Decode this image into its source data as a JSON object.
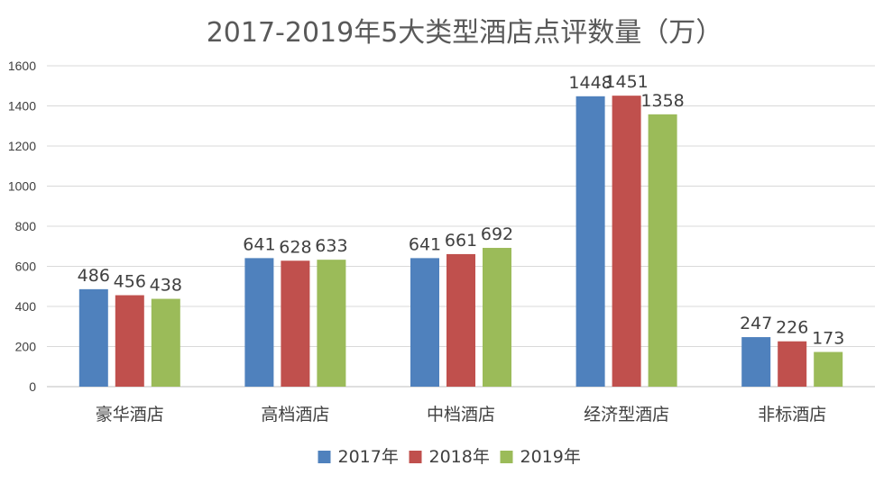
{
  "chart_data": {
    "type": "bar",
    "title": "2017-2019年5大类型酒店点评数量（万）",
    "categories": [
      "豪华酒店",
      "高档酒店",
      "中档酒店",
      "经济型酒店",
      "非标酒店"
    ],
    "series": [
      {
        "name": "2017年",
        "color": "#4f81bd",
        "values": [
          486,
          641,
          641,
          1448,
          247
        ]
      },
      {
        "name": "2018年",
        "color": "#c0504d",
        "values": [
          456,
          628,
          661,
          1451,
          226
        ]
      },
      {
        "name": "2019年",
        "color": "#9bbb59",
        "values": [
          438,
          633,
          692,
          1358,
          173
        ]
      }
    ],
    "ylim": [
      0,
      1600
    ],
    "yticks": [
      0,
      200,
      400,
      600,
      800,
      1000,
      1200,
      1400,
      1600
    ],
    "grid": true,
    "legend": "bottom-center",
    "xlabel": "",
    "ylabel": ""
  }
}
